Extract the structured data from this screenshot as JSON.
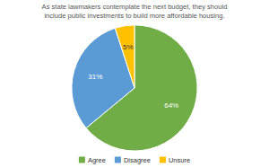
{
  "chart_data": {
    "type": "pie",
    "title": "As state lawmakers contemplate the next budget, they should\ninclude public investments to build more affordable housing.",
    "categories": [
      "Agree",
      "Disagree",
      "Unsure"
    ],
    "values": [
      64,
      31,
      5
    ],
    "value_labels": [
      "64%",
      "31%",
      "5%"
    ],
    "colors": [
      "#70ad47",
      "#5b9bd5",
      "#ffc000"
    ],
    "data_labels": true,
    "legend": "bottom"
  }
}
